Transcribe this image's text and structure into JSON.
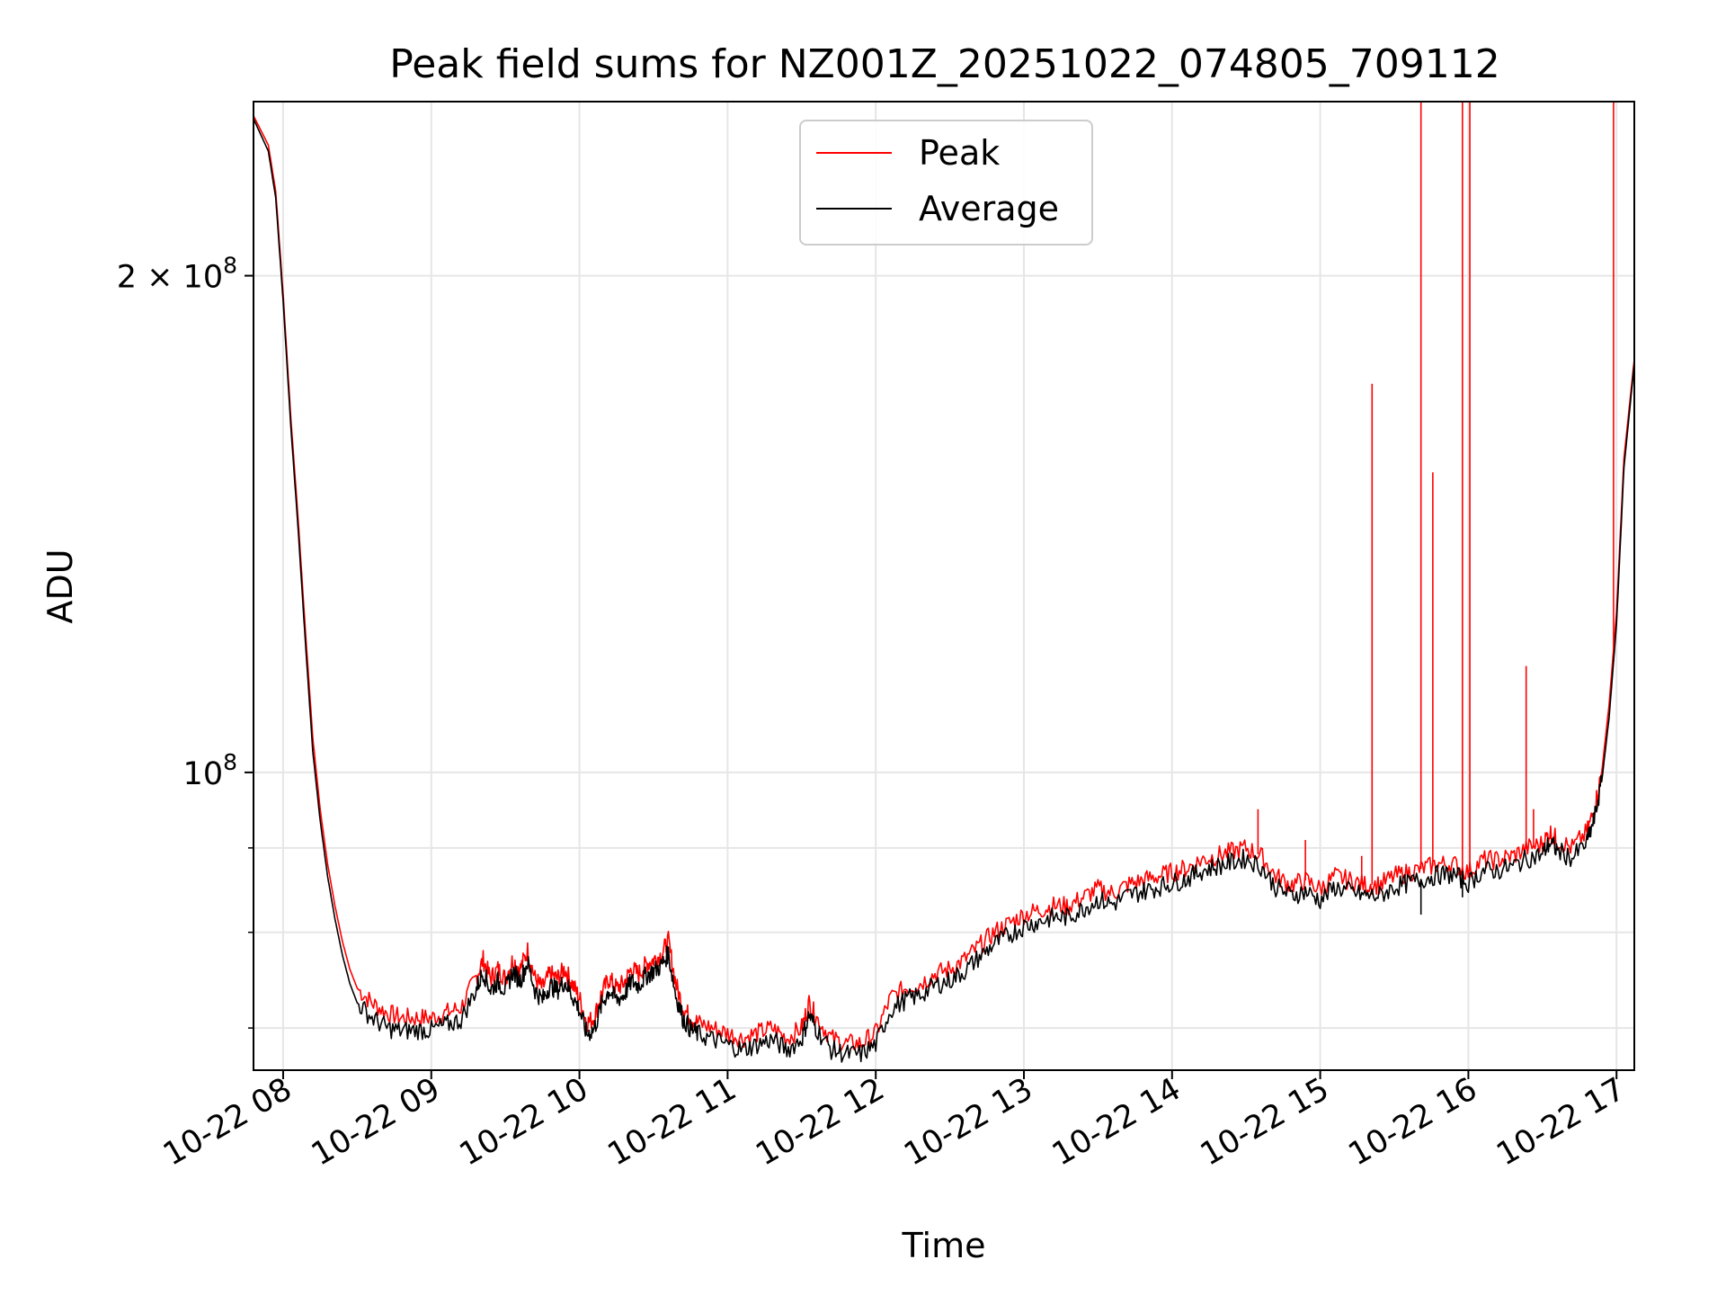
{
  "chart_data": {
    "type": "line",
    "title": "Peak field sums for NZ001Z_20251022_074805_709112",
    "xlabel": "Time",
    "ylabel": "ADU",
    "y_scale": "log",
    "ylim": [
      66000000,
      255000000
    ],
    "xlim_hours": [
      7.8,
      17.12
    ],
    "grid": true,
    "legend_position": "top-center",
    "x_ticks": [
      {
        "value": 8,
        "label": "10-22 08"
      },
      {
        "value": 9,
        "label": "10-22 09"
      },
      {
        "value": 10,
        "label": "10-22 10"
      },
      {
        "value": 11,
        "label": "10-22 11"
      },
      {
        "value": 12,
        "label": "10-22 12"
      },
      {
        "value": 13,
        "label": "10-22 13"
      },
      {
        "value": 14,
        "label": "10-22 14"
      },
      {
        "value": 15,
        "label": "10-22 15"
      },
      {
        "value": 16,
        "label": "10-22 16"
      },
      {
        "value": 17,
        "label": "10-22 17"
      }
    ],
    "y_major_ticks": [
      {
        "value": 100000000,
        "base": "10",
        "exp": "8"
      },
      {
        "value": 200000000,
        "mant": "2",
        "times": "×",
        "base": "10",
        "exp": "8"
      }
    ],
    "y_minor_ticks": [
      70000000,
      80000000,
      90000000,
      300000000
    ],
    "series": [
      {
        "name": "Peak",
        "color": "#ff0000",
        "x": [
          7.8,
          7.9,
          7.95,
          8.0,
          8.05,
          8.1,
          8.15,
          8.2,
          8.25,
          8.3,
          8.35,
          8.4,
          8.45,
          8.5,
          8.6,
          8.7,
          8.8,
          8.9,
          9.0,
          9.1,
          9.2,
          9.3,
          9.35,
          9.4,
          9.45,
          9.5,
          9.55,
          9.6,
          9.65,
          9.7,
          9.75,
          9.8,
          9.85,
          9.9,
          9.95,
          10.0,
          10.05,
          10.1,
          10.15,
          10.2,
          10.25,
          10.3,
          10.35,
          10.4,
          10.45,
          10.5,
          10.55,
          10.6,
          10.65,
          10.7,
          10.75,
          10.8,
          10.9,
          11.0,
          11.1,
          11.2,
          11.3,
          11.4,
          11.5,
          11.55,
          11.6,
          11.7,
          11.8,
          11.9,
          12.0,
          12.1,
          12.2,
          12.3,
          12.4,
          12.5,
          12.6,
          12.7,
          12.8,
          12.9,
          13.0,
          13.1,
          13.2,
          13.3,
          13.4,
          13.5,
          13.6,
          13.7,
          13.8,
          13.9,
          14.0,
          14.1,
          14.2,
          14.3,
          14.4,
          14.5,
          14.6,
          14.7,
          14.8,
          14.9,
          15.0,
          15.1,
          15.2,
          15.3,
          15.4,
          15.5,
          15.6,
          15.7,
          15.8,
          15.9,
          16.0,
          16.1,
          16.2,
          16.3,
          16.4,
          16.5,
          16.55,
          16.6,
          16.7,
          16.8,
          16.85,
          16.9,
          16.95,
          17.0,
          17.05,
          17.12
        ],
        "values": [
          250000000,
          240000000,
          225000000,
          195000000,
          165000000,
          143000000,
          122000000,
          105000000,
          95000000,
          88000000,
          83000000,
          79000000,
          76000000,
          74000000,
          72500000,
          71500000,
          71000000,
          71000000,
          71000000,
          71500000,
          72000000,
          75000000,
          77000000,
          75000000,
          76000000,
          75000000,
          77000000,
          76000000,
          78000000,
          75000000,
          74000000,
          75500000,
          75000000,
          76000000,
          74500000,
          73000000,
          70500000,
          71000000,
          73500000,
          75000000,
          74000000,
          74500000,
          76000000,
          75500000,
          76500000,
          77000000,
          77500000,
          79000000,
          74500000,
          72000000,
          71000000,
          70500000,
          70000000,
          69500000,
          69000000,
          69500000,
          70000000,
          69000000,
          70000000,
          72500000,
          71000000,
          69000000,
          68500000,
          68500000,
          69500000,
          73000000,
          74000000,
          74500000,
          75500000,
          76000000,
          77000000,
          78500000,
          80000000,
          81000000,
          82000000,
          82500000,
          83000000,
          83000000,
          84000000,
          85000000,
          84500000,
          85500000,
          86000000,
          86500000,
          87000000,
          87500000,
          88500000,
          89000000,
          89500000,
          90000000,
          89000000,
          86500000,
          85500000,
          86000000,
          85000000,
          86500000,
          86000000,
          85500000,
          85500000,
          86500000,
          87000000,
          87500000,
          88000000,
          88000000,
          87000000,
          88500000,
          88500000,
          89000000,
          90000000,
          90500000,
          92000000,
          91000000,
          90000000,
          92000000,
          95000000,
          100000000,
          110000000,
          125000000,
          155000000,
          178000000
        ],
        "spikes": [
          {
            "x": 14.58,
            "value": 95000000
          },
          {
            "x": 14.9,
            "value": 91000000
          },
          {
            "x": 15.28,
            "value": 89000000
          },
          {
            "x": 15.35,
            "value": 172000000
          },
          {
            "x": 15.68,
            "value": 255000000
          },
          {
            "x": 15.76,
            "value": 152000000
          },
          {
            "x": 15.96,
            "value": 255000000
          },
          {
            "x": 16.01,
            "value": 255000000
          },
          {
            "x": 16.39,
            "value": 116000000
          },
          {
            "x": 16.44,
            "value": 95000000
          },
          {
            "x": 16.98,
            "value": 255000000
          }
        ]
      },
      {
        "name": "Average",
        "color": "#000000",
        "x": [
          7.8,
          7.9,
          7.95,
          8.0,
          8.05,
          8.1,
          8.15,
          8.2,
          8.25,
          8.3,
          8.35,
          8.4,
          8.45,
          8.5,
          8.6,
          8.7,
          8.8,
          8.9,
          9.0,
          9.1,
          9.2,
          9.3,
          9.35,
          9.4,
          9.45,
          9.5,
          9.55,
          9.6,
          9.65,
          9.7,
          9.75,
          9.8,
          9.85,
          9.9,
          9.95,
          10.0,
          10.05,
          10.1,
          10.15,
          10.2,
          10.25,
          10.3,
          10.35,
          10.4,
          10.45,
          10.5,
          10.55,
          10.6,
          10.65,
          10.7,
          10.75,
          10.8,
          10.9,
          11.0,
          11.1,
          11.2,
          11.3,
          11.4,
          11.5,
          11.55,
          11.6,
          11.7,
          11.8,
          11.9,
          12.0,
          12.1,
          12.2,
          12.3,
          12.4,
          12.5,
          12.6,
          12.7,
          12.8,
          12.9,
          13.0,
          13.1,
          13.2,
          13.3,
          13.4,
          13.5,
          13.6,
          13.7,
          13.8,
          13.9,
          14.0,
          14.1,
          14.2,
          14.3,
          14.4,
          14.5,
          14.6,
          14.7,
          14.8,
          14.9,
          15.0,
          15.1,
          15.2,
          15.3,
          15.4,
          15.5,
          15.6,
          15.7,
          15.8,
          15.9,
          16.0,
          16.1,
          16.2,
          16.3,
          16.4,
          16.5,
          16.55,
          16.6,
          16.7,
          16.8,
          16.85,
          16.9,
          16.95,
          17.0,
          17.05,
          17.12
        ],
        "values": [
          249000000,
          238000000,
          223000000,
          193000000,
          163000000,
          141000000,
          120000000,
          103000000,
          93500000,
          86500000,
          81500000,
          77500000,
          74500000,
          72500000,
          71000000,
          70000000,
          69700000,
          69800000,
          69800000,
          70300000,
          70800000,
          73800000,
          75700000,
          73800000,
          74700000,
          73800000,
          75700000,
          74800000,
          76700000,
          73800000,
          72800000,
          74300000,
          73800000,
          74700000,
          73300000,
          71800000,
          69400000,
          69900000,
          72300000,
          73800000,
          72800000,
          73300000,
          74700000,
          74300000,
          75300000,
          75800000,
          76300000,
          77700000,
          73300000,
          70900000,
          69900000,
          69400000,
          68900000,
          68400000,
          67900000,
          68400000,
          68900000,
          67900000,
          68900000,
          71300000,
          69900000,
          67900000,
          67500000,
          67500000,
          68400000,
          71800000,
          72800000,
          73300000,
          74300000,
          74800000,
          75800000,
          77300000,
          78700000,
          79700000,
          80700000,
          81200000,
          81700000,
          81700000,
          82700000,
          83700000,
          83200000,
          84200000,
          84700000,
          85200000,
          85700000,
          86200000,
          87200000,
          87700000,
          88200000,
          88700000,
          87700000,
          85200000,
          84200000,
          84700000,
          83700000,
          85200000,
          84700000,
          84200000,
          84200000,
          85200000,
          85700000,
          86200000,
          86700000,
          86700000,
          85700000,
          87200000,
          87200000,
          87700000,
          88700000,
          89200000,
          90700000,
          89700000,
          88700000,
          90700000,
          93700000,
          98700000,
          108000000,
          123000000,
          153000000,
          177000000
        ],
        "dips": [
          {
            "x": 15.68,
            "value": 82000000
          },
          {
            "x": 15.96,
            "value": 84000000
          },
          {
            "x": 16.98,
            "value": 117000000
          }
        ]
      }
    ]
  }
}
